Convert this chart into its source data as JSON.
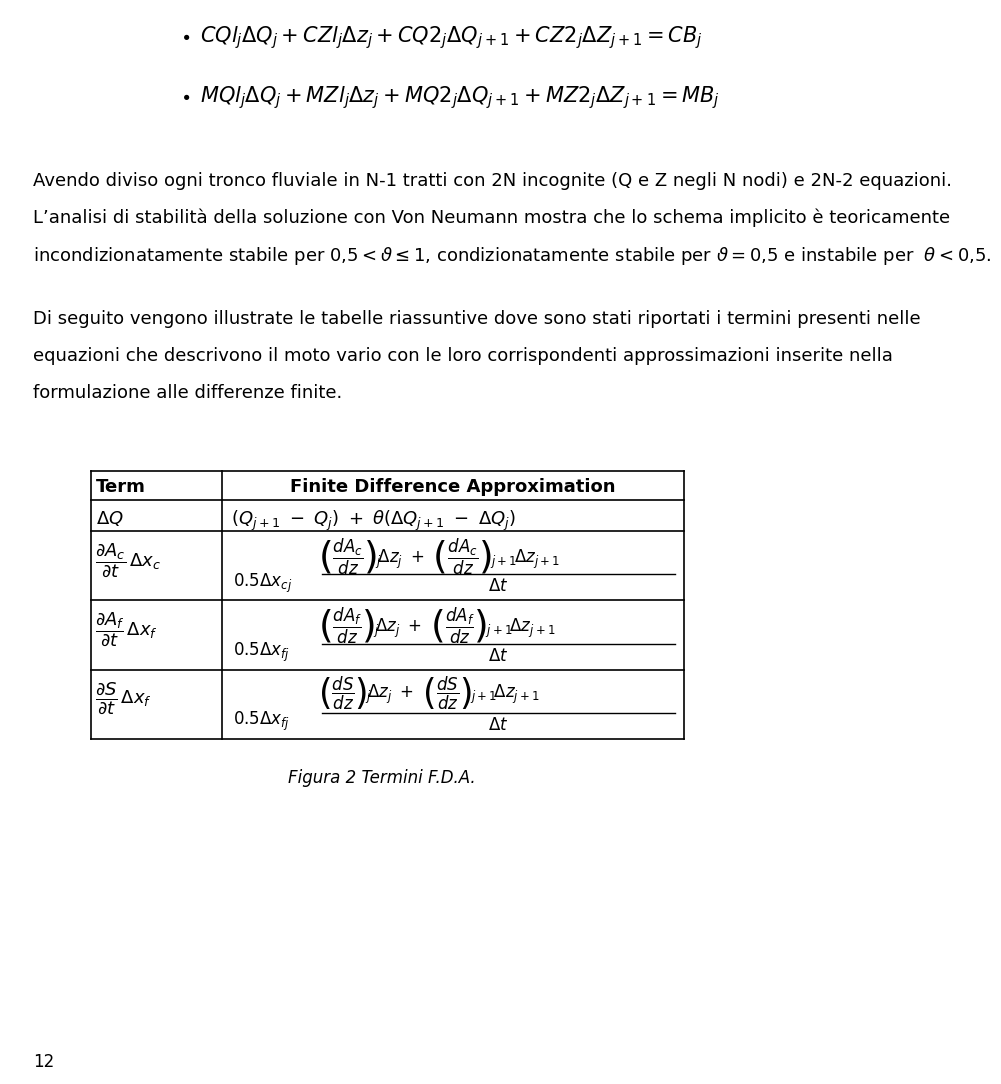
{
  "bg_color": "#ffffff",
  "page_number": "12",
  "fig_caption": "Figura 2 Termini F.D.A.",
  "para1": "Avendo diviso ogni tronco fluviale in N-1 tratti con 2N incognite (Q e Z negli N nodi) e 2N-2 equazioni.",
  "para2_line1": "L’analisi di stabilità della soluzione con Von Neumann mostra che lo schema implicito è teoricamente",
  "para3_line1": "Di seguito vengono illustrate le tabelle riassuntive dove sono stati riportati i termini presenti nelle",
  "para3_line2": "equazioni che descrivono il moto vario con le loro corrispondenti approssimazioni inserite nella",
  "para3_line3": "formulazione alle differenze finite."
}
